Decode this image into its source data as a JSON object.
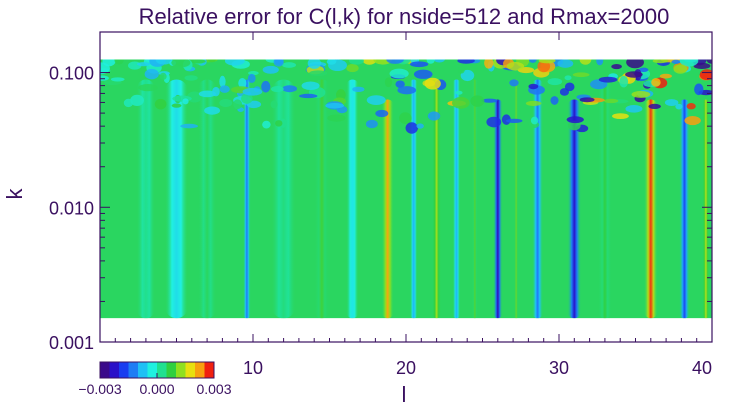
{
  "chart_data": {
    "type": "heatmap",
    "title": "Relative error for C(l,k) for nside=512 and Rmax=2000",
    "xlabel": "l",
    "ylabel": "k",
    "xlim": [
      0,
      40
    ],
    "ylim": [
      0.001,
      0.2
    ],
    "yscale": "log",
    "data_extent": {
      "x": [
        0,
        40
      ],
      "k": [
        0.0015,
        0.125
      ]
    },
    "x_ticks": [
      {
        "value": 10,
        "label": "10"
      },
      {
        "value": 20,
        "label": "20"
      },
      {
        "value": 30,
        "label": "30"
      },
      {
        "value": 40,
        "label": "40"
      }
    ],
    "y_ticks": [
      {
        "value": 0.001,
        "label": "0.001"
      },
      {
        "value": 0.01,
        "label": "0.010"
      },
      {
        "value": 0.1,
        "label": "0.100"
      }
    ],
    "colorbar": {
      "range": [
        -0.003,
        0.003
      ],
      "ticks": [
        {
          "value": -0.003,
          "label": "−0.003"
        },
        {
          "value": 0.0,
          "label": "0.000"
        },
        {
          "value": 0.003,
          "label": "0.003"
        }
      ],
      "colors": [
        "#3a0a8a",
        "#2a10c8",
        "#1a3cf0",
        "#1e7df5",
        "#20c0f5",
        "#20f0e0",
        "#20e090",
        "#30d040",
        "#90e020",
        "#e8e010",
        "#f8a010",
        "#f02010"
      ]
    },
    "stripes": [
      {
        "l": 3,
        "width": 1.2,
        "value": 0.0003
      },
      {
        "l": 5,
        "width": 1.5,
        "value": -0.0005
      },
      {
        "l": 7,
        "width": 1.2,
        "value": 0.0006
      },
      {
        "l": 9.6,
        "width": 0.5,
        "value": -0.0014
      },
      {
        "l": 12,
        "width": 1.6,
        "value": 0.0004
      },
      {
        "l": 14.5,
        "width": 1.0,
        "value": 0.0009
      },
      {
        "l": 16.5,
        "width": 0.8,
        "value": -0.0004
      },
      {
        "l": 18.8,
        "width": 0.8,
        "value": 0.0024
      },
      {
        "l": 20.5,
        "width": 0.5,
        "value": -0.0009
      },
      {
        "l": 22.0,
        "width": 0.6,
        "value": 0.0015
      },
      {
        "l": 23.3,
        "width": 0.5,
        "value": -0.0009
      },
      {
        "l": 24.5,
        "width": 0.5,
        "value": 0.001
      },
      {
        "l": 26.0,
        "width": 0.6,
        "value": -0.0026
      },
      {
        "l": 27.2,
        "width": 0.5,
        "value": 0.0011
      },
      {
        "l": 28.6,
        "width": 0.7,
        "value": -0.0014
      },
      {
        "l": 31.0,
        "width": 0.9,
        "value": -0.0024
      },
      {
        "l": 33.0,
        "width": 0.9,
        "value": 0.0008
      },
      {
        "l": 36.0,
        "width": 0.9,
        "value": 0.0029
      },
      {
        "l": 38.2,
        "width": 0.7,
        "value": -0.0018
      },
      {
        "l": 39.6,
        "width": 0.5,
        "value": 0.0016
      }
    ]
  }
}
